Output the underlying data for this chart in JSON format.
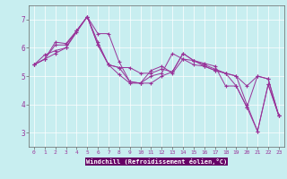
{
  "background_color": "#c8eef0",
  "plot_bg_color": "#c8eef0",
  "axis_bar_color": "#660066",
  "line_color": "#993399",
  "marker_color": "#993399",
  "xlabel": "Windchill (Refroidissement éolien,°C)",
  "xlim": [
    -0.5,
    23.5
  ],
  "ylim": [
    2.5,
    7.5
  ],
  "yticks": [
    3,
    4,
    5,
    6,
    7
  ],
  "xticks": [
    0,
    1,
    2,
    3,
    4,
    5,
    6,
    7,
    8,
    9,
    10,
    11,
    12,
    13,
    14,
    15,
    16,
    17,
    18,
    19,
    20,
    21,
    22,
    23
  ],
  "series": [
    [
      5.4,
      5.75,
      5.9,
      6.0,
      6.6,
      7.1,
      6.2,
      5.4,
      5.05,
      4.75,
      4.75,
      5.0,
      5.1,
      5.8,
      5.6,
      5.4,
      5.35,
      5.2,
      5.1,
      5.0,
      4.0,
      3.05,
      4.7,
      3.6
    ],
    [
      5.4,
      5.6,
      5.8,
      6.0,
      6.55,
      7.1,
      6.5,
      6.5,
      5.5,
      4.8,
      4.75,
      4.75,
      5.0,
      5.15,
      5.8,
      5.55,
      5.45,
      5.35,
      4.65,
      4.65,
      3.9,
      3.05,
      4.7,
      3.6
    ],
    [
      5.4,
      5.6,
      6.2,
      6.15,
      6.6,
      7.1,
      6.1,
      5.4,
      5.3,
      4.8,
      4.75,
      5.2,
      5.35,
      5.1,
      5.6,
      5.55,
      5.4,
      5.25,
      5.1,
      5.0,
      4.65,
      5.0,
      4.9,
      3.6
    ],
    [
      5.4,
      5.6,
      6.1,
      6.1,
      6.6,
      7.1,
      6.1,
      5.4,
      5.3,
      5.3,
      5.1,
      5.1,
      5.25,
      5.15,
      5.8,
      5.55,
      5.35,
      5.2,
      5.1,
      4.65,
      3.9,
      5.0,
      4.9,
      3.6
    ]
  ],
  "grid_color": "#aadddd",
  "spine_color": "#666666",
  "tick_label_color": "#993399",
  "xlabel_color": "#993399",
  "xlabel_bg": "#660066"
}
